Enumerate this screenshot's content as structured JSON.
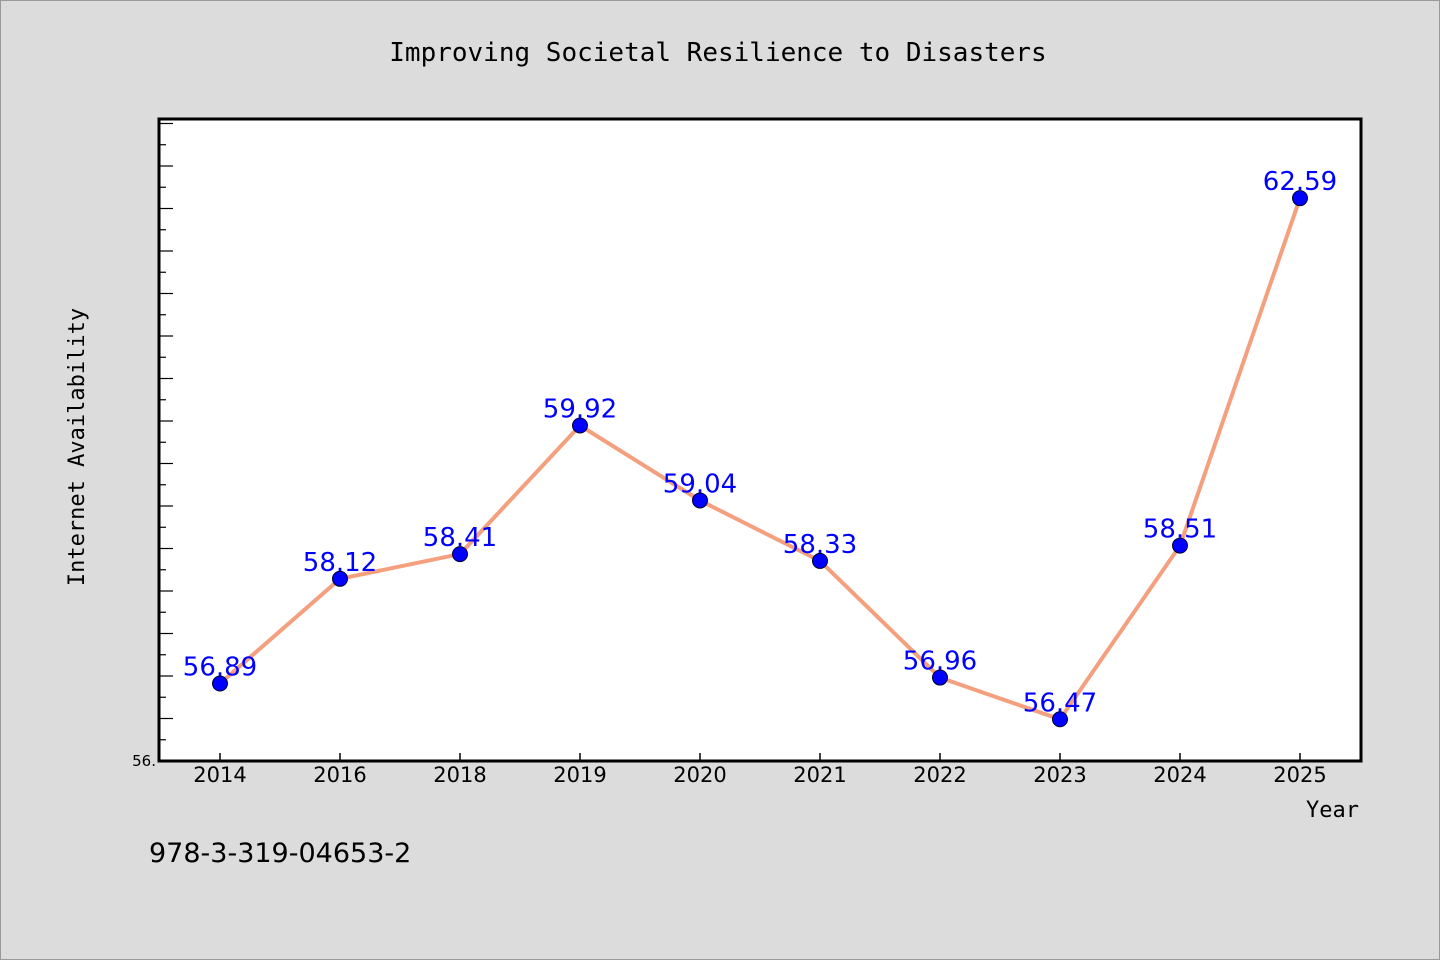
{
  "chart_data": {
    "type": "line",
    "title": "Improving Societal Resilience to Disasters",
    "xlabel": "Year",
    "ylabel": "Internet Availability",
    "categories": [
      "2014",
      "2016",
      "2018",
      "2019",
      "2020",
      "2021",
      "2022",
      "2023",
      "2024",
      "2025"
    ],
    "series": [
      {
        "values": [
          56.89,
          58.12,
          58.41,
          59.92,
          59.04,
          58.33,
          56.96,
          56.47,
          58.51,
          62.59
        ],
        "data_labels": [
          "56.89",
          "58.12",
          "58.41",
          "59.92",
          "59.04",
          "58.33",
          "56.96",
          "56.47",
          "58.51",
          "62.59"
        ]
      }
    ],
    "ylim": [
      55.98,
      63.52
    ],
    "y_tick_labels": [
      "56."
    ],
    "grid": false,
    "legend": "none",
    "colors": {
      "line": "#f4a07e",
      "marker": "#0000ff",
      "data_label": "#0000ff",
      "background": "#dcdcdc",
      "plot_area": "#ffffff"
    }
  },
  "footer": {
    "isbn": "978-3-319-04653-2"
  }
}
